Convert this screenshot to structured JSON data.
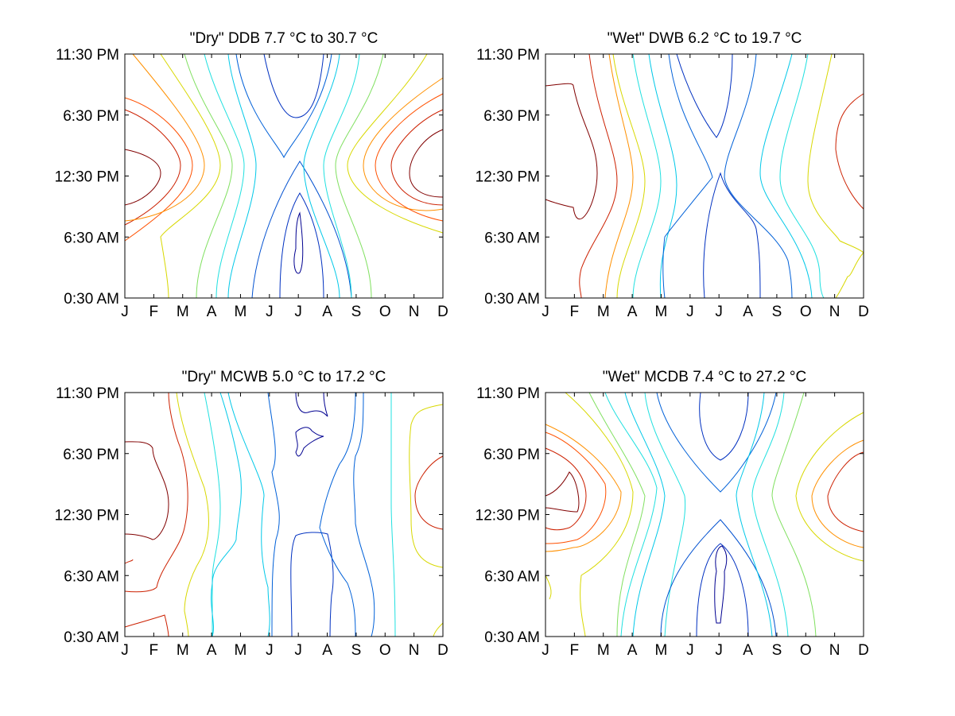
{
  "figure": {
    "x_tick_labels": [
      "J",
      "F",
      "M",
      "A",
      "M",
      "J",
      "J",
      "A",
      "S",
      "O",
      "N",
      "D"
    ],
    "y_tick_labels": [
      "0:30 AM",
      "6:30 AM",
      "12:30 PM",
      "6:30 PM",
      "11:30 PM"
    ]
  },
  "chart_data": [
    {
      "type": "contour",
      "title": "\"Dry\" DDB   7.7 °C to  30.7 °C",
      "x": [
        "J",
        "F",
        "M",
        "A",
        "M",
        "J",
        "J",
        "A",
        "S",
        "O",
        "N",
        "D"
      ],
      "y": [
        "0:30 AM",
        "6:30 AM",
        "12:30 PM",
        "6:30 PM",
        "11:30 PM"
      ],
      "z_range": [
        7.7,
        30.7
      ],
      "z_unit": "°C",
      "colormap": "jet",
      "grid": false
    },
    {
      "type": "contour",
      "title": "\"Wet\" DWB   6.2 °C to  19.7 °C",
      "x": [
        "J",
        "F",
        "M",
        "A",
        "M",
        "J",
        "J",
        "A",
        "S",
        "O",
        "N",
        "D"
      ],
      "y": [
        "0:30 AM",
        "6:30 AM",
        "12:30 PM",
        "6:30 PM",
        "11:30 PM"
      ],
      "z_range": [
        6.2,
        19.7
      ],
      "z_unit": "°C",
      "colormap": "jet",
      "grid": false
    },
    {
      "type": "contour",
      "title": "\"Dry\" MCWB   5.0 °C to  17.2 °C",
      "x": [
        "J",
        "F",
        "M",
        "A",
        "M",
        "J",
        "J",
        "A",
        "S",
        "O",
        "N",
        "D"
      ],
      "y": [
        "0:30 AM",
        "6:30 AM",
        "12:30 PM",
        "6:30 PM",
        "11:30 PM"
      ],
      "z_range": [
        5.0,
        17.2
      ],
      "z_unit": "°C",
      "colormap": "jet",
      "grid": false
    },
    {
      "type": "contour",
      "title": "\"Wet\" MCDB   7.4 °C to  27.2 °C",
      "x": [
        "J",
        "F",
        "M",
        "A",
        "M",
        "J",
        "J",
        "A",
        "S",
        "O",
        "N",
        "D"
      ],
      "y": [
        "0:30 AM",
        "6:30 AM",
        "12:30 PM",
        "6:30 PM",
        "11:30 PM"
      ],
      "z_range": [
        7.4,
        27.2
      ],
      "z_unit": "°C",
      "colormap": "jet",
      "grid": false
    }
  ]
}
